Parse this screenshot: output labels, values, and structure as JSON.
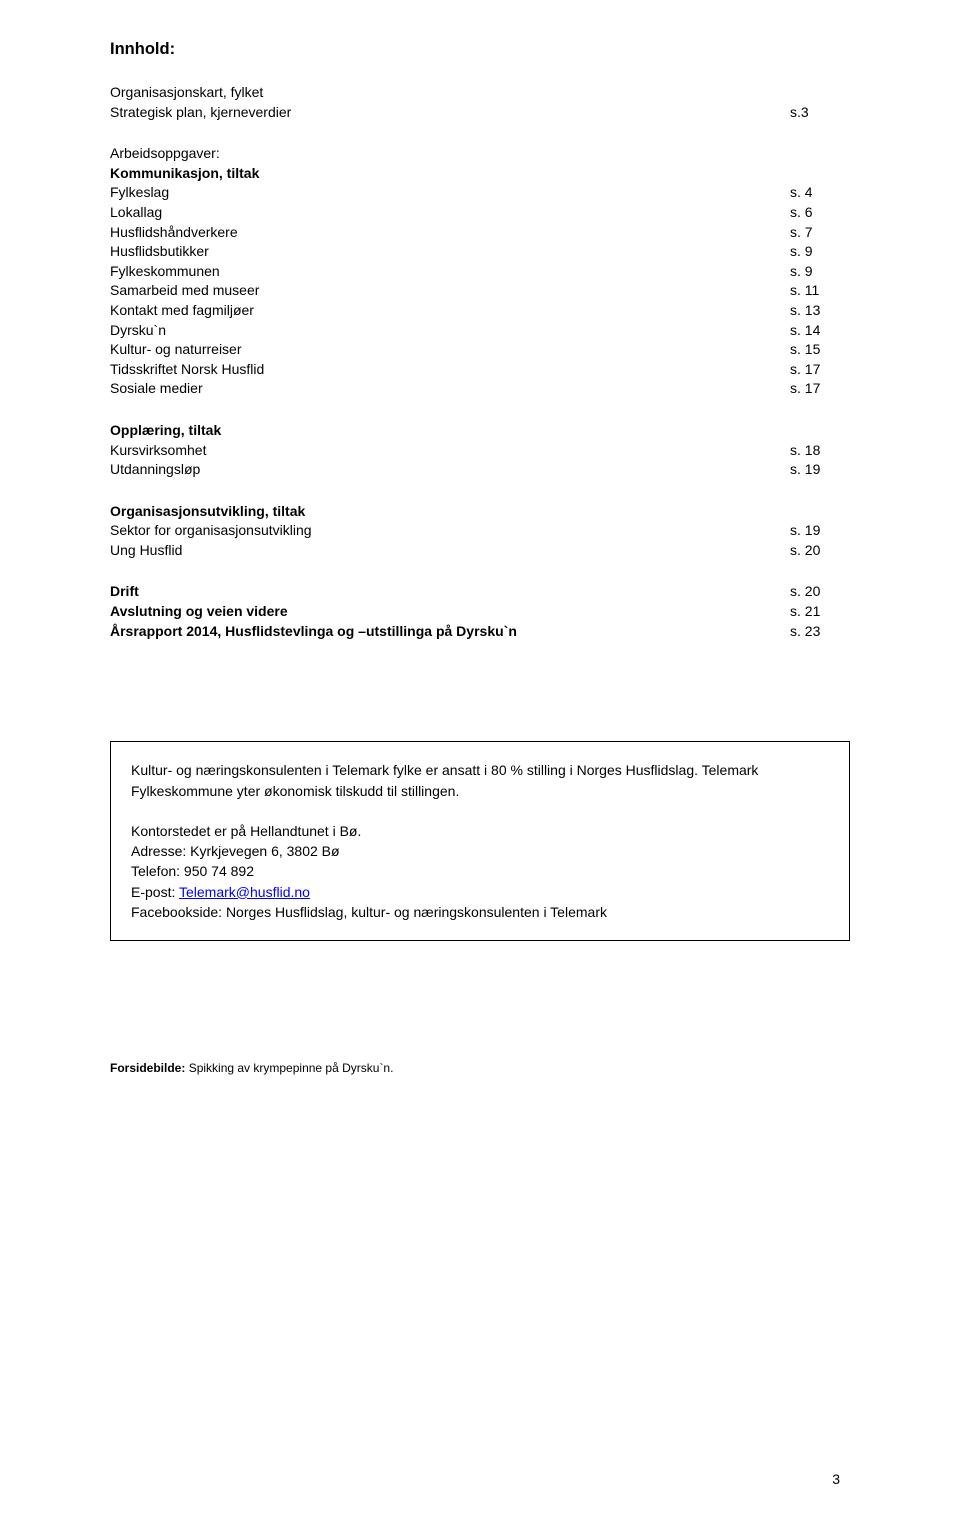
{
  "title": "Innhold:",
  "intro": [
    "Organisasjonskart, fylket",
    "Strategisk plan, kjerneverdier"
  ],
  "intro_page": "s.3",
  "sections": [
    {
      "heading": "Arbeidsoppgaver:",
      "items": [
        {
          "label": "Kommunikasjon, tiltak",
          "page": "",
          "bold": true
        },
        {
          "label": "Fylkeslag",
          "page": "s. 4"
        },
        {
          "label": "Lokallag",
          "page": "s. 6"
        },
        {
          "label": "Husflidshåndverkere",
          "page": "s. 7"
        },
        {
          "label": "Husflidsbutikker",
          "page": "s. 9"
        },
        {
          "label": "Fylkeskommunen",
          "page": "s. 9"
        },
        {
          "label": "Samarbeid med museer",
          "page": "s. 11"
        },
        {
          "label": "Kontakt med fagmiljøer",
          "page": "s. 13"
        },
        {
          "label": "Dyrsku`n",
          "page": "s. 14"
        },
        {
          "label": "Kultur- og naturreiser",
          "page": "s. 15"
        },
        {
          "label": "Tidsskriftet Norsk Husflid",
          "page": "s. 17"
        },
        {
          "label": "Sosiale medier",
          "page": "s. 17"
        }
      ]
    },
    {
      "heading": "Opplæring, tiltak",
      "items": [
        {
          "label": "Kursvirksomhet",
          "page": "s. 18"
        },
        {
          "label": "Utdanningsløp",
          "page": "s. 19"
        }
      ]
    },
    {
      "heading": "Organisasjonsutvikling, tiltak",
      "items": [
        {
          "label": "Sektor for organisasjonsutvikling",
          "page": "s. 19"
        },
        {
          "label": "Ung Husflid",
          "page": "s. 20"
        }
      ]
    },
    {
      "heading": "",
      "items": [
        {
          "label": "Drift",
          "page": "s. 20",
          "bold": true
        },
        {
          "label": "Avslutning og veien videre",
          "page": "s. 21",
          "bold": true
        },
        {
          "label": "Årsrapport 2014, Husflidstevlinga og –utstillinga på Dyrsku`n",
          "page": "s. 23",
          "bold": true
        }
      ]
    }
  ],
  "box": {
    "p1": "Kultur- og næringskonsulenten i Telemark fylke er ansatt i 80 % stilling i Norges Husflidslag. Telemark Fylkeskommune yter økonomisk tilskudd til stillingen.",
    "p2_lines": [
      "Kontorstedet er på Hellandtunet i Bø.",
      "Adresse: Kyrkjevegen 6, 3802 Bø",
      "Telefon: 950 74 892"
    ],
    "email_label": "E-post: ",
    "email_link": "Telemark@husflid.no",
    "p3": "Facebookside: Norges Husflidslag, kultur- og næringskonsulenten i Telemark"
  },
  "caption_prefix": "Forsidebilde: ",
  "caption_text": "Spikking av krympepinne på Dyrsku`n.",
  "page_number": "3"
}
